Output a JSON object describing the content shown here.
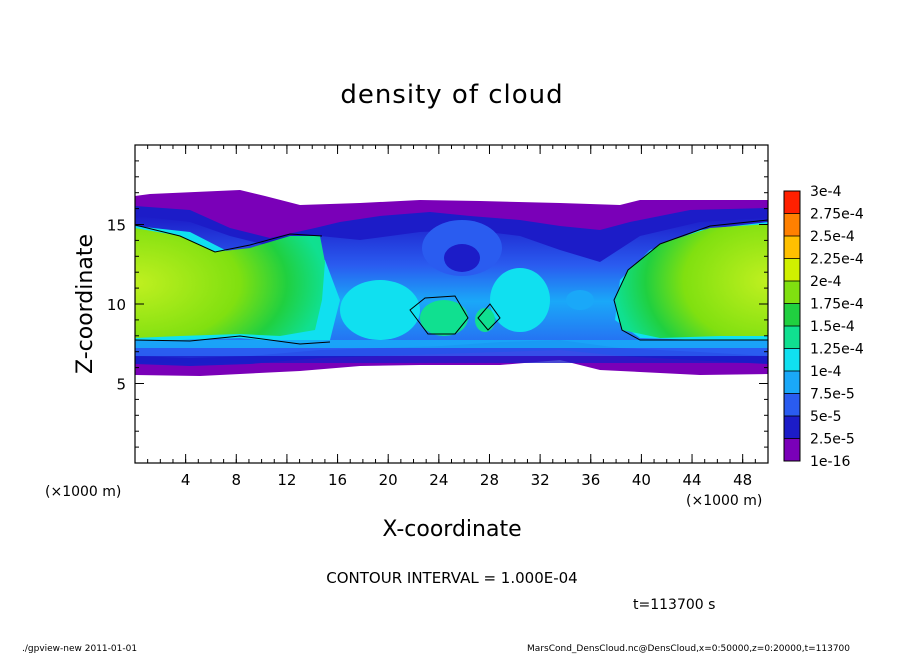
{
  "chart_data": {
    "type": "heatmap",
    "title": "density of cloud",
    "xlabel": "X-coordinate",
    "ylabel": "Z-coordinate",
    "x_unit": "(×1000 m)",
    "y_unit": "(×1000 m)",
    "xlim": [
      0,
      50
    ],
    "ylim": [
      0,
      20
    ],
    "xticks": [
      "4",
      "8",
      "12",
      "16",
      "20",
      "24",
      "28",
      "32",
      "36",
      "40",
      "44",
      "48"
    ],
    "yticks": [
      "5",
      "10",
      "15"
    ],
    "colorbar": {
      "levels": [
        "1e-16",
        "2.5e-5",
        "5e-5",
        "7.5e-5",
        "1e-4",
        "1.25e-4",
        "1.5e-4",
        "1.75e-4",
        "2e-4",
        "2.25e-4",
        "2.5e-4",
        "2.75e-4",
        "3e-4"
      ],
      "colors": [
        "#7a00b8",
        "#1c1cc8",
        "#2a5cf0",
        "#1aa8f8",
        "#10e0f0",
        "#10e090",
        "#20d040",
        "#80e010",
        "#d0f000",
        "#ffc000",
        "#ff8000",
        "#ff2000",
        "#ff9090"
      ]
    },
    "contour_interval_text": "CONTOUR INTERVAL = 1.000E-04",
    "time_text": "t=113700 s"
  },
  "footer": {
    "left": "./gpview-new  2011-01-01",
    "right": "MarsCond_DensCloud.nc@DensCloud,x=0:50000,z=0:20000,t=113700"
  }
}
